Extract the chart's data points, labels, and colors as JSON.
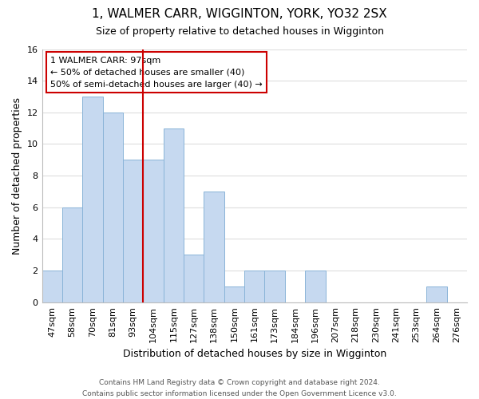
{
  "title": "1, WALMER CARR, WIGGINTON, YORK, YO32 2SX",
  "subtitle": "Size of property relative to detached houses in Wigginton",
  "xlabel": "Distribution of detached houses by size in Wigginton",
  "ylabel": "Number of detached properties",
  "bar_labels": [
    "47sqm",
    "58sqm",
    "70sqm",
    "81sqm",
    "93sqm",
    "104sqm",
    "115sqm",
    "127sqm",
    "138sqm",
    "150sqm",
    "161sqm",
    "173sqm",
    "184sqm",
    "196sqm",
    "207sqm",
    "218sqm",
    "230sqm",
    "241sqm",
    "253sqm",
    "264sqm",
    "276sqm"
  ],
  "bar_values": [
    2,
    6,
    13,
    12,
    9,
    9,
    11,
    3,
    7,
    1,
    2,
    2,
    0,
    2,
    0,
    0,
    0,
    0,
    0,
    1,
    0
  ],
  "bar_color": "#c6d9f0",
  "bar_edge_color": "#8ab4d8",
  "vline_color": "#cc0000",
  "vline_x_index": 4.5,
  "annotation_text": "1 WALMER CARR: 97sqm\n← 50% of detached houses are smaller (40)\n50% of semi-detached houses are larger (40) →",
  "annotation_box_color": "#ffffff",
  "annotation_box_edge": "#cc0000",
  "ylim": [
    0,
    16
  ],
  "yticks": [
    0,
    2,
    4,
    6,
    8,
    10,
    12,
    14,
    16
  ],
  "footer1": "Contains HM Land Registry data © Crown copyright and database right 2024.",
  "footer2": "Contains public sector information licensed under the Open Government Licence v3.0.",
  "background_color": "#ffffff",
  "grid_color": "#dddddd",
  "title_fontsize": 11,
  "subtitle_fontsize": 9,
  "axis_label_fontsize": 9,
  "tick_fontsize": 8,
  "annotation_fontsize": 8,
  "footer_fontsize": 6.5
}
